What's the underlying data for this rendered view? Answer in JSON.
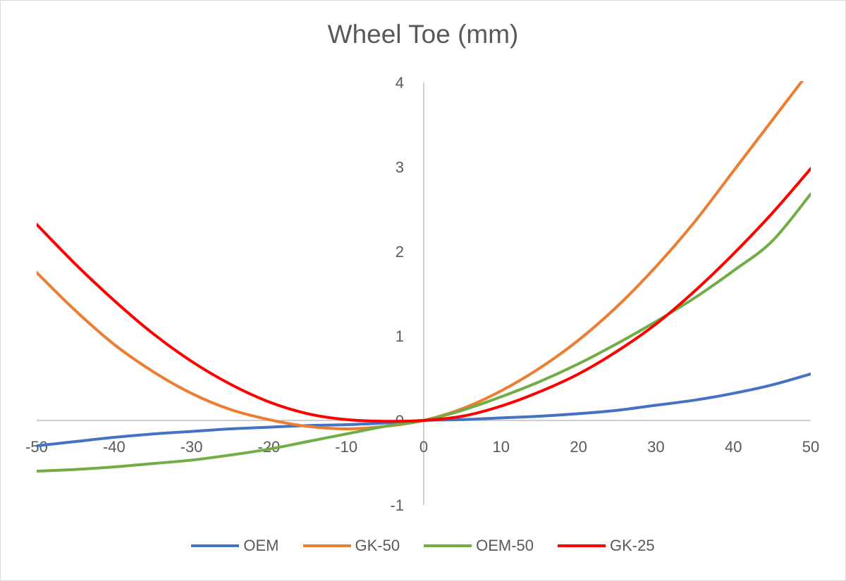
{
  "chart_data": {
    "type": "line",
    "title": "Wheel Toe (mm)",
    "xlabel": "",
    "ylabel": "",
    "xlim": [
      -50,
      50
    ],
    "ylim": [
      -1,
      4
    ],
    "x_ticks": [
      -50,
      -40,
      -30,
      -20,
      -10,
      0,
      10,
      20,
      30,
      40,
      50
    ],
    "y_ticks": [
      -1,
      0,
      1,
      2,
      3,
      4
    ],
    "grid": false,
    "legend_position": "bottom",
    "x": [
      -50,
      -45,
      -40,
      -35,
      -30,
      -25,
      -20,
      -15,
      -10,
      -5,
      0,
      5,
      10,
      15,
      20,
      25,
      30,
      35,
      40,
      45,
      50
    ],
    "series": [
      {
        "name": "OEM",
        "color": "#4472c4",
        "values": [
          -0.3,
          -0.25,
          -0.2,
          -0.16,
          -0.13,
          -0.1,
          -0.08,
          -0.06,
          -0.05,
          -0.03,
          0.0,
          0.01,
          0.03,
          0.05,
          0.08,
          0.12,
          0.18,
          0.24,
          0.32,
          0.42,
          0.55
        ]
      },
      {
        "name": "GK-50",
        "color": "#ed7d31",
        "values": [
          1.75,
          1.3,
          0.9,
          0.58,
          0.32,
          0.13,
          0.01,
          -0.07,
          -0.1,
          -0.07,
          0.0,
          0.14,
          0.35,
          0.62,
          0.95,
          1.35,
          1.82,
          2.35,
          2.95,
          3.55,
          4.15
        ]
      },
      {
        "name": "OEM-50",
        "color": "#70ad47",
        "values": [
          -0.6,
          -0.58,
          -0.55,
          -0.51,
          -0.47,
          -0.41,
          -0.34,
          -0.25,
          -0.16,
          -0.07,
          0.0,
          0.12,
          0.28,
          0.46,
          0.67,
          0.91,
          1.17,
          1.45,
          1.77,
          2.12,
          2.68
        ]
      },
      {
        "name": "GK-25",
        "color": "#ff0000",
        "values": [
          2.32,
          1.85,
          1.42,
          1.03,
          0.7,
          0.43,
          0.22,
          0.08,
          0.01,
          -0.01,
          0.0,
          0.05,
          0.17,
          0.34,
          0.55,
          0.82,
          1.14,
          1.53,
          1.97,
          2.45,
          2.98
        ]
      }
    ]
  }
}
